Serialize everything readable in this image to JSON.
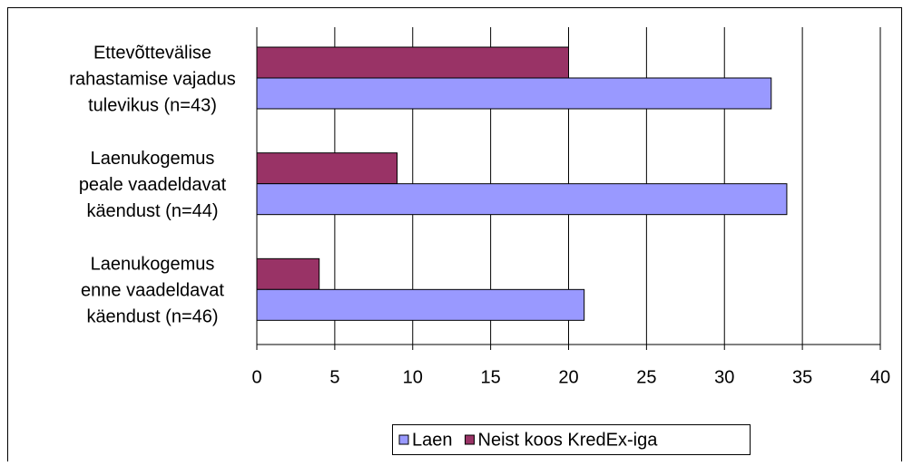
{
  "chart_data": {
    "type": "bar",
    "orientation": "horizontal",
    "categories": [
      "Ettevõttevälise\nrahastamise vajadus\ntulevikus (n=43)",
      "Laenukogemus\npeale vaadeldavat\nkäendust (n=44)",
      "Laenukogemus\nenne vaadeldavat\nkäendust (n=46)"
    ],
    "series": [
      {
        "name": "Neist koos KredEx-iga",
        "color": "#993366",
        "values": [
          20,
          9,
          4
        ]
      },
      {
        "name": "Laen",
        "color": "#9999ff",
        "values": [
          33,
          34,
          21
        ]
      }
    ],
    "legend_order": [
      1,
      0
    ],
    "xlim": [
      0,
      40
    ],
    "xticks": [
      0,
      5,
      10,
      15,
      20,
      25,
      30,
      35,
      40
    ],
    "grid": true,
    "legend": "bottom"
  }
}
